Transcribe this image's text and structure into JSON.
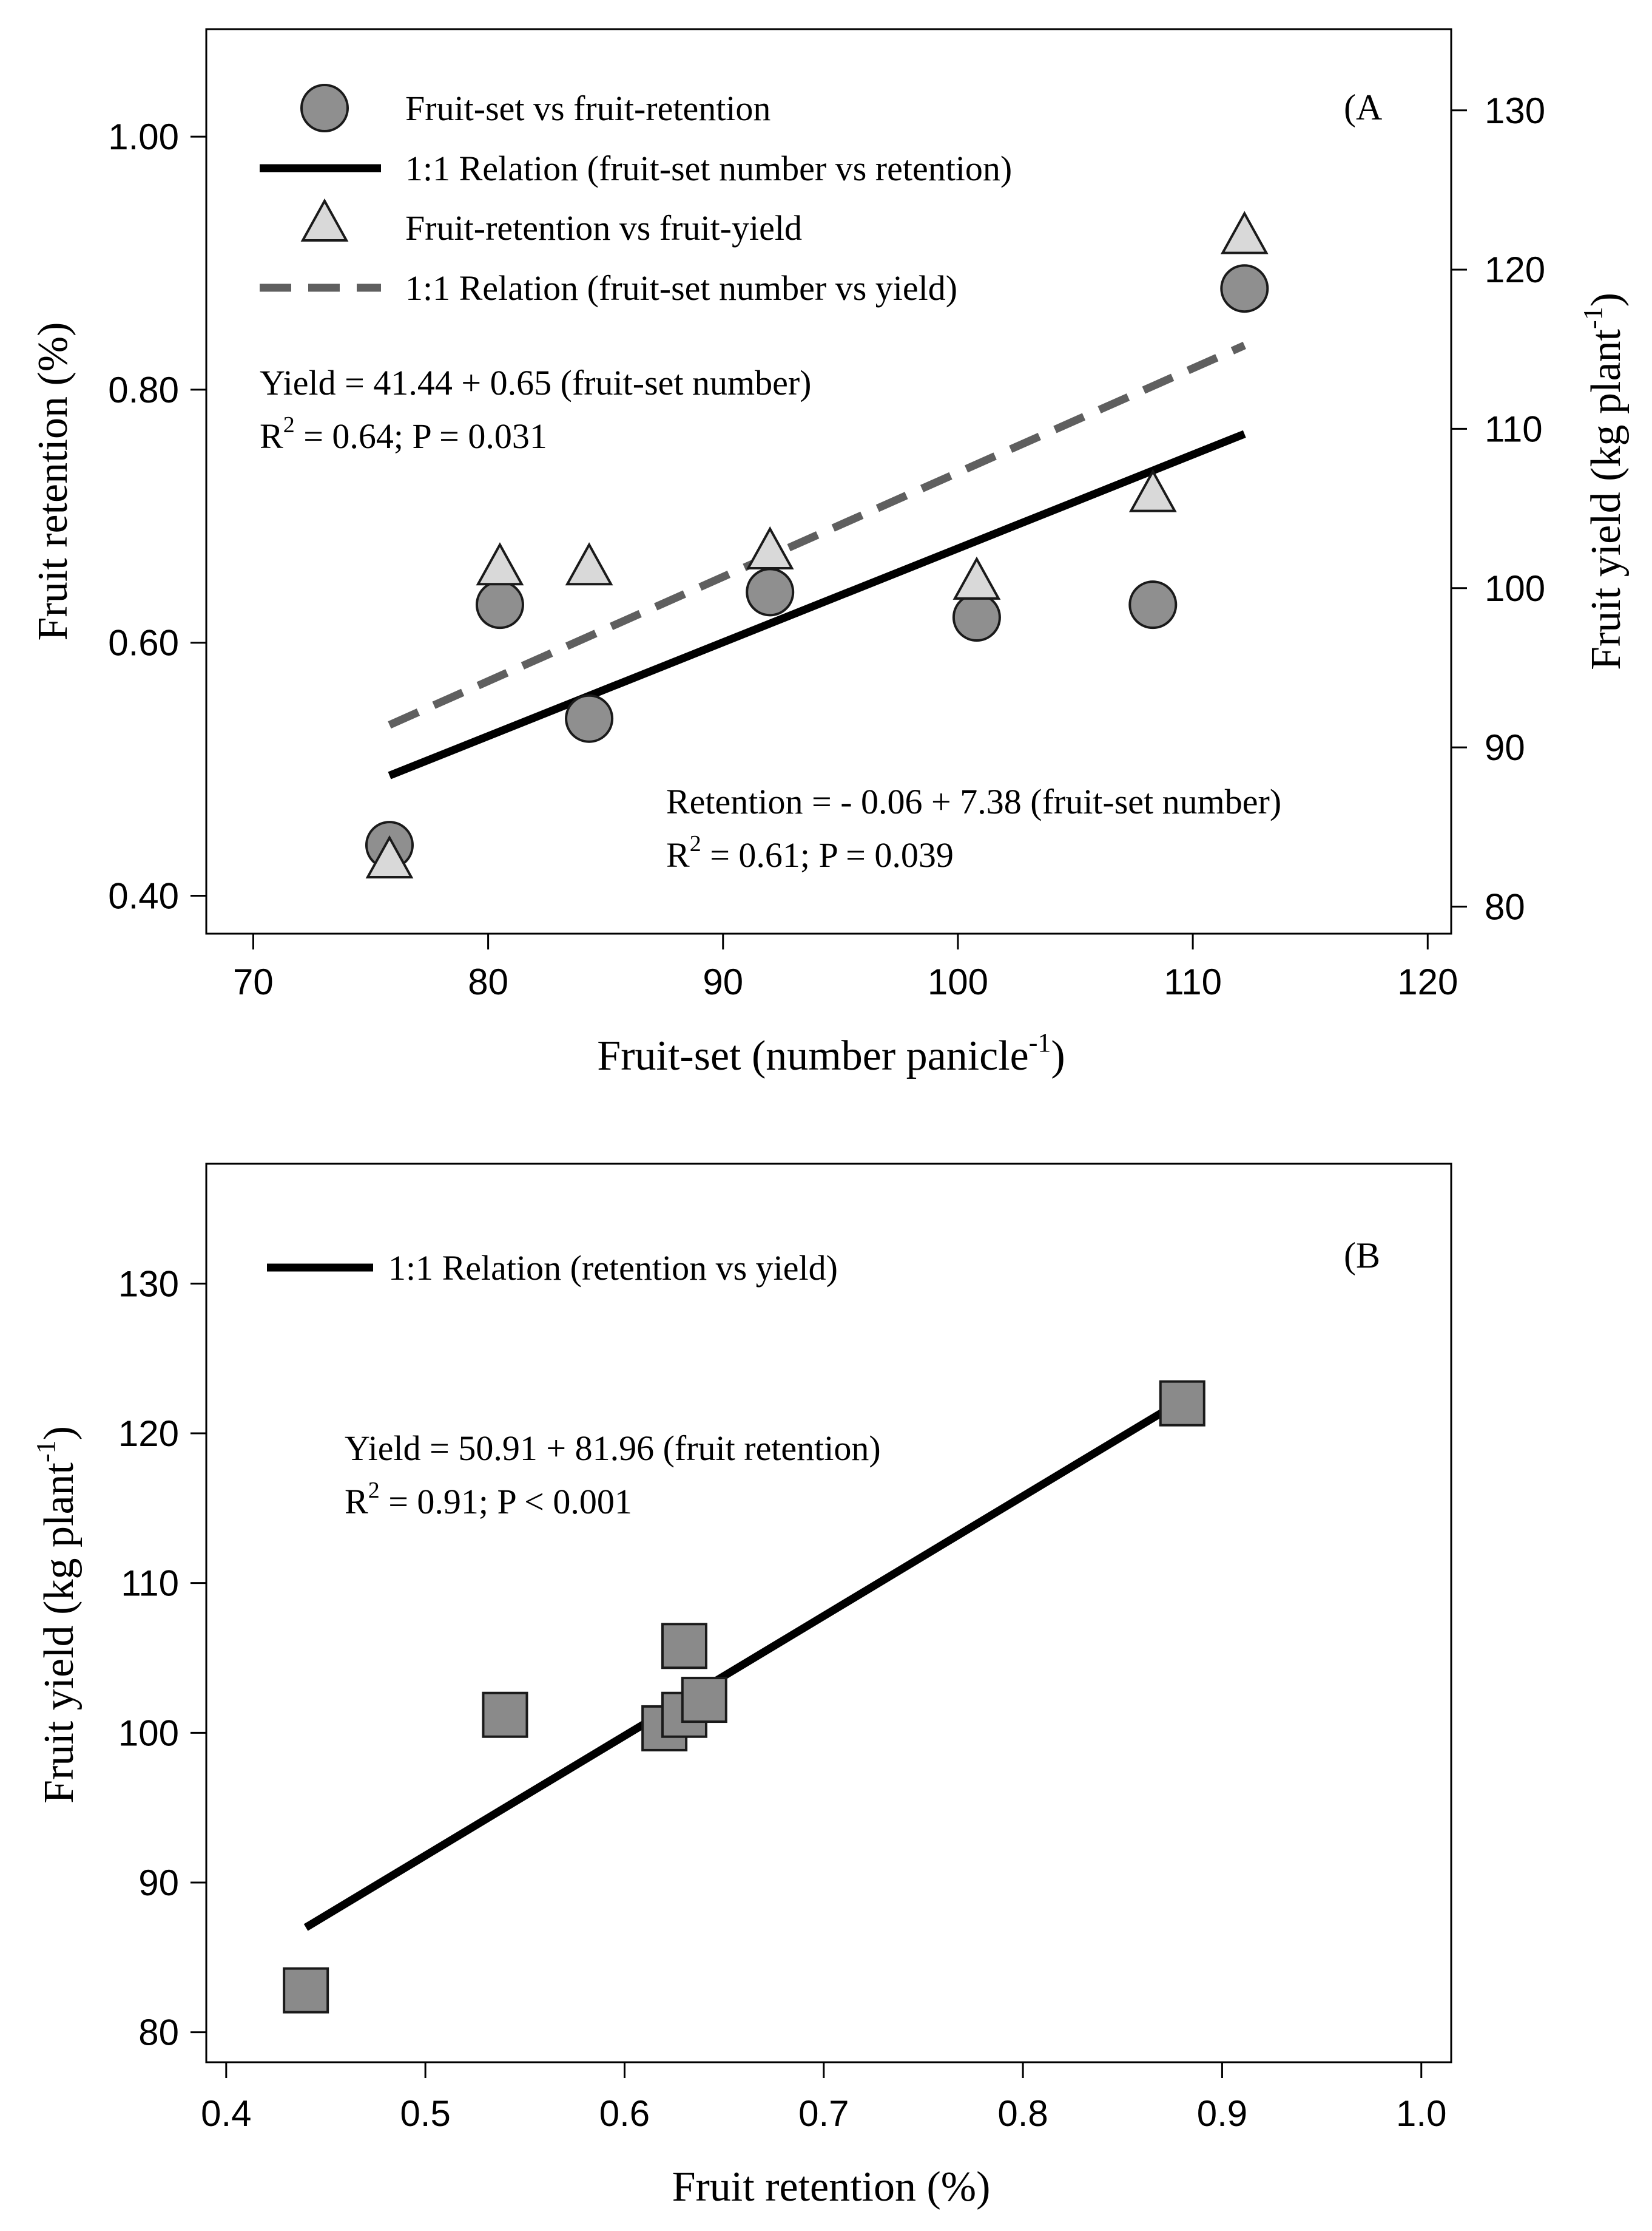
{
  "chart_data": [
    {
      "type": "scatter",
      "panel_label": "(A",
      "xlabel": "Fruit-set (number panicle",
      "xlabel_sup": "-1",
      "xlabel_end": ")",
      "ylabel_left": "Fruit retention (%)",
      "ylabel_right": "Fruit yield (kg plant",
      "ylabel_right_sup": "-1",
      "ylabel_right_end": ")",
      "xlim": [
        68,
        121
      ],
      "ylim_left": [
        0.37,
        1.085
      ],
      "ylim_right": [
        78.3,
        135.1
      ],
      "x_ticks": [
        "70",
        "80",
        "90",
        "100",
        "110",
        "120"
      ],
      "x_tick_values": [
        70,
        80,
        90,
        100,
        110,
        120
      ],
      "y_left_ticks": [
        "0.40",
        "0.60",
        "0.80",
        "1.00"
      ],
      "y_left_tick_values": [
        0.4,
        0.6,
        0.8,
        1.0
      ],
      "y_right_ticks": [
        "80",
        "90",
        "100",
        "110",
        "120",
        "130"
      ],
      "y_right_tick_values": [
        80,
        90,
        100,
        110,
        120,
        130
      ],
      "series": [
        {
          "name": "Fruit-set vs fruit-retention",
          "marker": "circle",
          "axis": "left",
          "points": [
            {
              "x": 75.8,
              "y": 0.44
            },
            {
              "x": 80.5,
              "y": 0.63
            },
            {
              "x": 84.3,
              "y": 0.54
            },
            {
              "x": 92.0,
              "y": 0.64
            },
            {
              "x": 100.8,
              "y": 0.62
            },
            {
              "x": 108.3,
              "y": 0.63
            },
            {
              "x": 112.2,
              "y": 0.88
            }
          ]
        },
        {
          "name": "Fruit-retention vs fruit-yield",
          "marker": "triangle",
          "axis": "right",
          "points": [
            {
              "x": 75.8,
              "y": 82.8
            },
            {
              "x": 80.5,
              "y": 101.2
            },
            {
              "x": 84.3,
              "y": 101.2
            },
            {
              "x": 92.0,
              "y": 102.2
            },
            {
              "x": 100.8,
              "y": 100.3
            },
            {
              "x": 108.3,
              "y": 105.8
            },
            {
              "x": 112.2,
              "y": 122.0
            }
          ]
        }
      ],
      "lines": [
        {
          "name": "1:1 Relation (fruit-set number vs retention)",
          "style": "solid",
          "axis": "left",
          "x": [
            75.8,
            112.2
          ],
          "y": [
            0.495,
            0.765
          ]
        },
        {
          "name": "1:1 Relation (fruit-set number vs yield)",
          "style": "dashed",
          "axis": "left",
          "x": [
            75.8,
            112.2
          ],
          "y": [
            0.535,
            0.835
          ]
        }
      ],
      "annotations": {
        "yield_eq": "Yield = 41.44 + 0.65 (fruit-set number)",
        "yield_r2_pre": "R",
        "yield_r2_sup": "2",
        "yield_r2_post": " = 0.64; P = 0.031",
        "ret_eq": "Retention = - 0.06 + 7.38 (fruit-set number)",
        "ret_r2_pre": "R",
        "ret_r2_sup": "2",
        "ret_r2_post": " = 0.61; P = 0.039"
      },
      "legend_position": "top-left"
    },
    {
      "type": "scatter",
      "panel_label": "(B",
      "xlabel": "Fruit retention (%)",
      "ylabel": "Fruit yield (kg plant",
      "ylabel_sup": "-1",
      "ylabel_end": ")",
      "xlim": [
        0.39,
        1.015
      ],
      "ylim": [
        78,
        138
      ],
      "x_ticks": [
        "0.4",
        "0.5",
        "0.6",
        "0.7",
        "0.8",
        "0.9",
        "1.0"
      ],
      "x_tick_values": [
        0.4,
        0.5,
        0.6,
        0.7,
        0.8,
        0.9,
        1.0
      ],
      "y_ticks": [
        "80",
        "90",
        "100",
        "110",
        "120",
        "130"
      ],
      "y_tick_values": [
        80,
        90,
        100,
        110,
        120,
        130
      ],
      "series": [
        {
          "name": "retention vs yield",
          "marker": "square",
          "points": [
            {
              "x": 0.44,
              "y": 82.8
            },
            {
              "x": 0.54,
              "y": 101.2
            },
            {
              "x": 0.62,
              "y": 100.3
            },
            {
              "x": 0.63,
              "y": 101.2
            },
            {
              "x": 0.64,
              "y": 102.2
            },
            {
              "x": 0.63,
              "y": 105.8
            },
            {
              "x": 0.88,
              "y": 122.0
            }
          ]
        }
      ],
      "lines": [
        {
          "name": "1:1 Relation (retention vs yield)",
          "style": "solid",
          "x": [
            0.44,
            0.88
          ],
          "y": [
            87.0,
            122.2
          ]
        }
      ],
      "annotations": {
        "eq": "Yield = 50.91 + 81.96 (fruit retention)",
        "r2_pre": "R",
        "r2_sup": "2",
        "r2_post": " = 0.91; P < 0.001"
      },
      "legend_position": "top-left"
    }
  ],
  "colors": {
    "circle_fill": "#8f8f8f",
    "triangle_fill": "#d9d9d9",
    "square_fill": "#8a8a8a",
    "marker_stroke": "#1a1a1a",
    "solid_line": "#000000",
    "dashed_line": "#5f5f5f"
  }
}
